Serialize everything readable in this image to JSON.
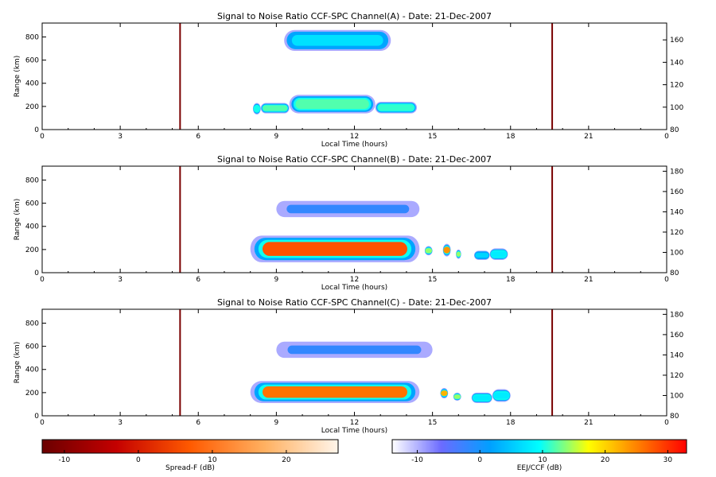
{
  "chart_data": {
    "type": "heatmap",
    "panels": [
      {
        "title": "Signal to Noise Ratio CCF-SPC Channel(A) - Date: 21-Dec-2007",
        "xlabel": "Local Time (hours)",
        "ylabel": "Range (km)",
        "xlim": [
          0,
          24
        ],
        "ylim": [
          0,
          920
        ],
        "xticks": [
          "0",
          "3",
          "6",
          "9",
          "12",
          "15",
          "18",
          "21",
          "0"
        ],
        "yticks": [
          0,
          200,
          400,
          600,
          800
        ],
        "right_ylim": [
          80,
          175
        ],
        "right_yticks": [
          80,
          100,
          120,
          140,
          160
        ],
        "marker_times": [
          5.3,
          19.6
        ],
        "echo_regions": [
          {
            "t0": 8.1,
            "t1": 8.4,
            "r0": 130,
            "r1": 230,
            "snr": 10
          },
          {
            "t0": 8.4,
            "t1": 9.5,
            "r0": 140,
            "r1": 230,
            "snr": 12
          },
          {
            "t0": 9.5,
            "t1": 12.8,
            "r0": 140,
            "r1": 300,
            "snr": 12
          },
          {
            "t0": 12.8,
            "t1": 14.4,
            "r0": 140,
            "r1": 240,
            "snr": 11
          },
          {
            "t0": 9.3,
            "t1": 13.4,
            "r0": 680,
            "r1": 860,
            "snr": 7
          }
        ]
      },
      {
        "title": "Signal to Noise Ratio CCF-SPC Channel(B) - Date: 21-Dec-2007",
        "xlabel": "Local Time (hours)",
        "ylabel": "Range (km)",
        "xlim": [
          0,
          24
        ],
        "ylim": [
          0,
          920
        ],
        "xticks": [
          "0",
          "3",
          "6",
          "9",
          "12",
          "15",
          "18",
          "21",
          "0"
        ],
        "yticks": [
          0,
          200,
          400,
          600,
          800
        ],
        "right_ylim": [
          80,
          185
        ],
        "right_yticks": [
          80,
          100,
          120,
          140,
          160,
          180
        ],
        "marker_times": [
          5.3,
          19.6
        ],
        "echo_regions": [
          {
            "t0": 8.0,
            "t1": 14.5,
            "r0": 90,
            "r1": 320,
            "snr": 28
          },
          {
            "t0": 14.7,
            "t1": 15.0,
            "r0": 150,
            "r1": 230,
            "snr": 14
          },
          {
            "t0": 15.4,
            "t1": 15.7,
            "r0": 140,
            "r1": 250,
            "snr": 24
          },
          {
            "t0": 15.9,
            "t1": 16.1,
            "r0": 120,
            "r1": 200,
            "snr": 14
          },
          {
            "t0": 16.6,
            "t1": 17.2,
            "r0": 110,
            "r1": 190,
            "snr": 6
          },
          {
            "t0": 17.2,
            "t1": 17.9,
            "r0": 110,
            "r1": 210,
            "snr": 8
          },
          {
            "t0": 9.0,
            "t1": 14.5,
            "r0": 480,
            "r1": 620,
            "snr": -2
          }
        ]
      },
      {
        "title": "Signal to Noise Ratio CCF-SPC Channel(C) - Date: 21-Dec-2007",
        "xlabel": "Local Time (hours)",
        "ylabel": "Range (km)",
        "xlim": [
          0,
          24
        ],
        "ylim": [
          0,
          920
        ],
        "xticks": [
          "0",
          "3",
          "6",
          "9",
          "12",
          "15",
          "18",
          "21",
          "0"
        ],
        "yticks": [
          0,
          200,
          400,
          600,
          800
        ],
        "right_ylim": [
          80,
          185
        ],
        "right_yticks": [
          80,
          100,
          120,
          140,
          160,
          180
        ],
        "marker_times": [
          5.3,
          19.6
        ],
        "echo_regions": [
          {
            "t0": 8.0,
            "t1": 14.5,
            "r0": 110,
            "r1": 300,
            "snr": 26
          },
          {
            "t0": 15.3,
            "t1": 15.6,
            "r0": 150,
            "r1": 240,
            "snr": 22
          },
          {
            "t0": 15.8,
            "t1": 16.1,
            "r0": 130,
            "r1": 200,
            "snr": 14
          },
          {
            "t0": 16.5,
            "t1": 17.3,
            "r0": 110,
            "r1": 200,
            "snr": 8
          },
          {
            "t0": 17.3,
            "t1": 18.0,
            "r0": 120,
            "r1": 230,
            "snr": 8
          },
          {
            "t0": 9.0,
            "t1": 15.0,
            "r0": 500,
            "r1": 640,
            "snr": -2
          }
        ]
      }
    ],
    "colorbars": [
      {
        "label": "Spread-F (dB)",
        "range": [
          -13,
          27
        ],
        "ticks": [
          "-10",
          "0",
          "10",
          "20"
        ],
        "stops": [
          "#6b0000",
          "#c40000",
          "#ff5a00",
          "#ffb060",
          "#fff5ea"
        ]
      },
      {
        "label": "EEJ/CCF (dB)",
        "range": [
          -14,
          33
        ],
        "ticks": [
          "-10",
          "0",
          "10",
          "20",
          "30"
        ],
        "stops": [
          "#ffffff",
          "#6b6bff",
          "#00a0ff",
          "#00ffff",
          "#ffff00",
          "#ff8000",
          "#ff0000"
        ]
      }
    ]
  }
}
